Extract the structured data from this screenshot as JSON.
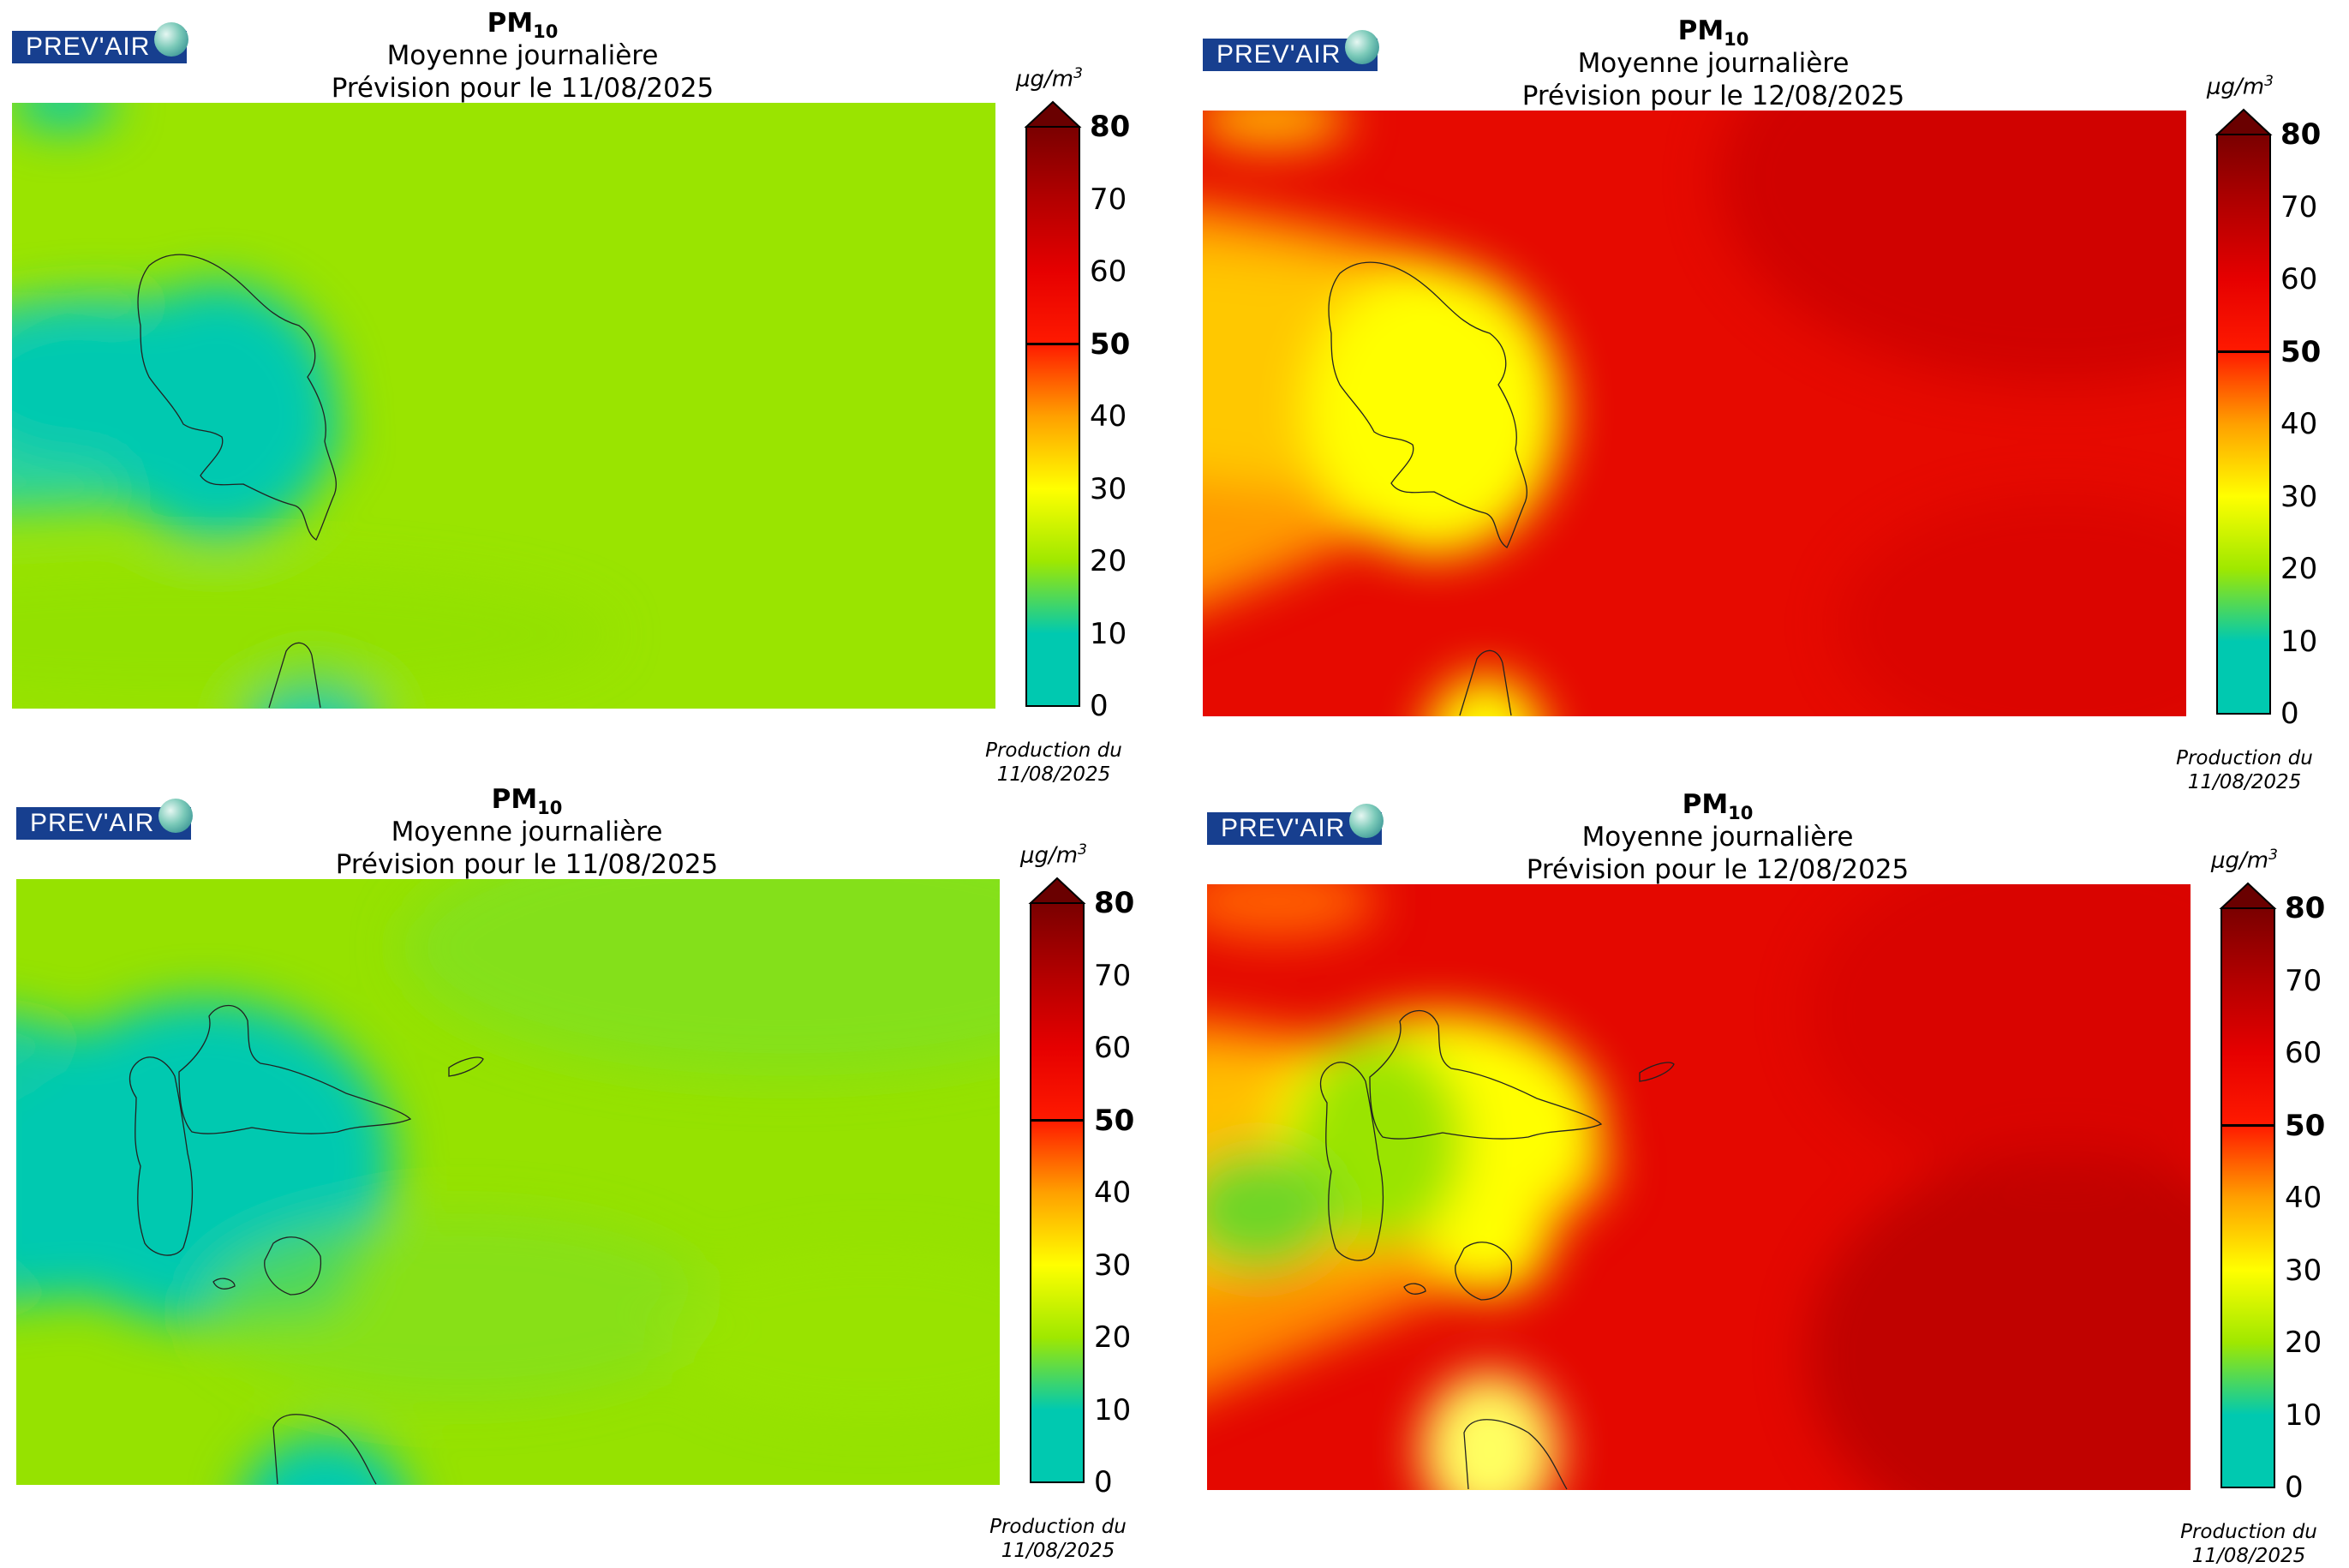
{
  "logo_text": "PREV'AIR",
  "colorbar": {
    "unit": "μg/m",
    "unit_exp": "3",
    "ticks": [
      "0",
      "10",
      "20",
      "30",
      "40",
      "50",
      "60",
      "70",
      "80"
    ],
    "bold_ticks": [
      "50",
      "80"
    ],
    "colors": [
      "#00c9b0",
      "#00c9b0",
      "#9fe800",
      "#ffff00",
      "#ffa000",
      "#ff1a00",
      "#e60000",
      "#b30000",
      "#7a0000"
    ]
  },
  "panels": [
    {
      "pollutant": "PM",
      "pollutant_sub": "10",
      "subtitle": "Moyenne journalière",
      "forecast": "Prévision pour le 11/08/2025",
      "production_label": "Production du",
      "production_date": "11/08/2025",
      "region": "Martinique",
      "background_color": "#9ae400"
    },
    {
      "pollutant": "PM",
      "pollutant_sub": "10",
      "subtitle": "Moyenne journalière",
      "forecast": "Prévision pour le 12/08/2025",
      "production_label": "Production du",
      "production_date": "11/08/2025",
      "region": "Martinique",
      "background_color": "#e60a00"
    },
    {
      "pollutant": "PM",
      "pollutant_sub": "10",
      "subtitle": "Moyenne journalière",
      "forecast": "Prévision pour le 11/08/2025",
      "production_label": "Production du",
      "production_date": "11/08/2025",
      "region": "Guadeloupe",
      "background_color": "#96e200"
    },
    {
      "pollutant": "PM",
      "pollutant_sub": "10",
      "subtitle": "Moyenne journalière",
      "forecast": "Prévision pour le 12/08/2025",
      "production_label": "Production du",
      "production_date": "11/08/2025",
      "region": "Guadeloupe",
      "background_color": "#e40800"
    }
  ]
}
